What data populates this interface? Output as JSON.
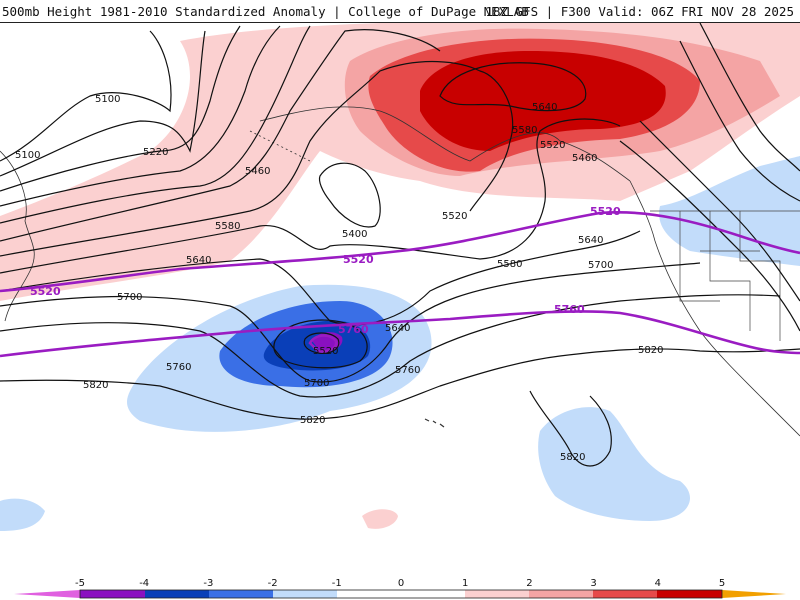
{
  "header": {
    "title": "500mb Height 1981-2010 Standardized Anomaly | College of DuPage NEXLAB",
    "valid": "18Z GFS | F300 Valid: 06Z FRI NOV 28 2025"
  },
  "contour_labels": {
    "c5100a": "5100",
    "c5100b": "5100",
    "c5220": "5220",
    "c5460a": "5460",
    "c5460b": "5460",
    "c5400": "5400",
    "c5520a": "5520",
    "c5520b": "5520",
    "c5520c": "5520",
    "c5580a": "5580",
    "c5580b": "5580",
    "c5580c": "5580",
    "c5640a": "5640",
    "c5640b": "5640",
    "c5640c": "5640",
    "c5640d": "5640",
    "c5700a": "5700",
    "c5700b": "5700",
    "c5700c": "5700",
    "c5760a": "5760",
    "c5760b": "5760",
    "c5820a": "5820",
    "c5820b": "5820",
    "c5820c": "5820",
    "c5820d": "5820"
  },
  "thickness_labels": {
    "t5520a": "5520",
    "t5520b": "5520",
    "t5520c": "5520",
    "t5760a": "5760",
    "t5760b": "5760"
  },
  "colorbar": {
    "ticks": [
      "-5",
      "-4",
      "-3",
      "-2",
      "-1",
      "0",
      "1",
      "2",
      "3",
      "4",
      "5"
    ],
    "colors": {
      "n5": "#e060e0",
      "n4": "#8a10c0",
      "n3": "#0a3fb8",
      "n2": "#3a6fe6",
      "n1": "#c2dcfa",
      "zero": "#ffffff",
      "p1": "#fbd0d0",
      "p2": "#f4a4a4",
      "p3": "#e64a4a",
      "p4": "#c80000",
      "p5": "#f2a000"
    }
  }
}
